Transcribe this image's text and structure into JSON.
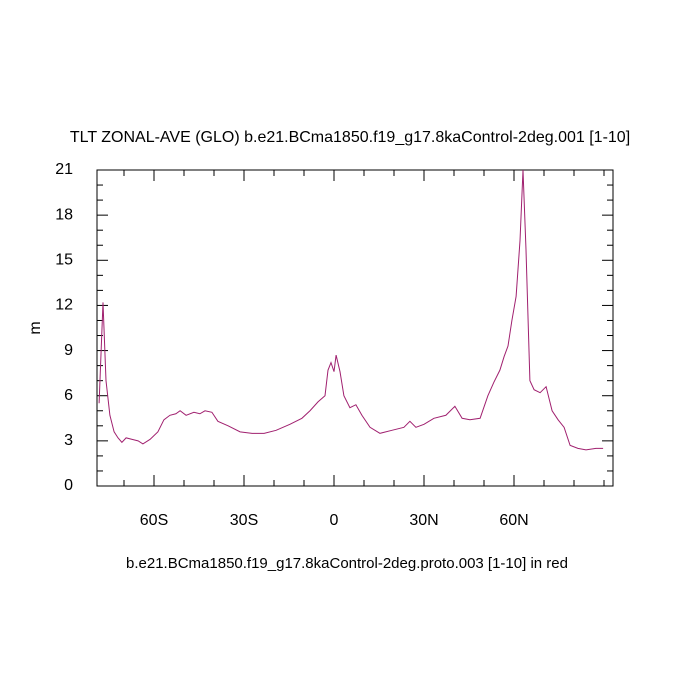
{
  "chart_data": {
    "type": "line",
    "title": "TLT ZONAL-AVE (GLO) b.e21.BCma1850.f19_g17.8kaControl-2deg.001 [1-10]",
    "subtitle": "b.e21.BCma1850.f19_g17.8kaControl-2deg.proto.003 [1-10] in red",
    "y_label": "m",
    "x": [
      -78.3,
      -77,
      -76,
      -74.7,
      -73.3,
      -72,
      -70.7,
      -69.3,
      -67.3,
      -65.3,
      -63.7,
      -61.3,
      -58.7,
      -56.7,
      -54.7,
      -52.7,
      -51.3,
      -49.3,
      -46.7,
      -44.7,
      -43,
      -40.7,
      -38.7,
      -35.3,
      -31.3,
      -27.3,
      -23.3,
      -19.3,
      -14.7,
      -10.7,
      -8,
      -5.3,
      -3,
      -2,
      -1,
      0,
      0.7,
      2,
      3.3,
      5.3,
      7.3,
      9.3,
      12,
      15.3,
      19.3,
      23.3,
      25.3,
      27.3,
      30,
      33.3,
      37.3,
      40.3,
      42.7,
      45.3,
      48.7,
      51.3,
      53.3,
      55.3,
      56.7,
      58,
      59.3,
      60.7,
      62,
      63,
      64,
      65.3,
      66.7,
      68.7,
      70.7,
      72.7,
      74.7,
      76.7,
      78.7,
      81.3,
      84,
      87.3,
      89.7
    ],
    "series": [
      {
        "color": "#a0206f",
        "values": [
          5.5,
          12.2,
          7.0,
          4.7,
          3.6,
          3.2,
          2.9,
          3.2,
          3.1,
          3.0,
          2.8,
          3.1,
          3.6,
          4.4,
          4.7,
          4.8,
          5.0,
          4.7,
          4.9,
          4.8,
          5.0,
          4.9,
          4.3,
          4.0,
          3.6,
          3.5,
          3.5,
          3.7,
          4.1,
          4.5,
          5.0,
          5.6,
          6.0,
          7.7,
          8.2,
          7.6,
          8.7,
          7.6,
          6.0,
          5.2,
          5.4,
          4.7,
          3.9,
          3.5,
          3.7,
          3.9,
          4.3,
          3.9,
          4.1,
          4.5,
          4.7,
          5.3,
          4.5,
          4.4,
          4.5,
          6.0,
          6.9,
          7.7,
          8.6,
          9.3,
          11.0,
          12.6,
          16.3,
          21.0,
          15.7,
          7.0,
          6.4,
          6.2,
          6.6,
          5.0,
          4.4,
          3.9,
          2.7,
          2.5,
          2.4,
          2.5,
          2.5
        ]
      }
    ],
    "xlim": [
      -79,
      93
    ],
    "xticks": [
      {
        "value": -60,
        "label": "60S"
      },
      {
        "value": -30,
        "label": "30S"
      },
      0,
      {
        "value": 30,
        "label": "30N"
      },
      {
        "value": 60,
        "label": "60N"
      }
    ],
    "xminorticks": [
      -70,
      -50,
      -40,
      -20,
      -10,
      10,
      20,
      40,
      50,
      70,
      80,
      90
    ],
    "ylim": [
      0,
      21
    ],
    "yticks": [
      0,
      3,
      6,
      9,
      12,
      15,
      18,
      21
    ],
    "yminorticks": [
      1,
      2,
      4,
      5,
      7,
      8,
      10,
      11,
      13,
      14,
      16,
      17,
      19,
      20
    ]
  }
}
